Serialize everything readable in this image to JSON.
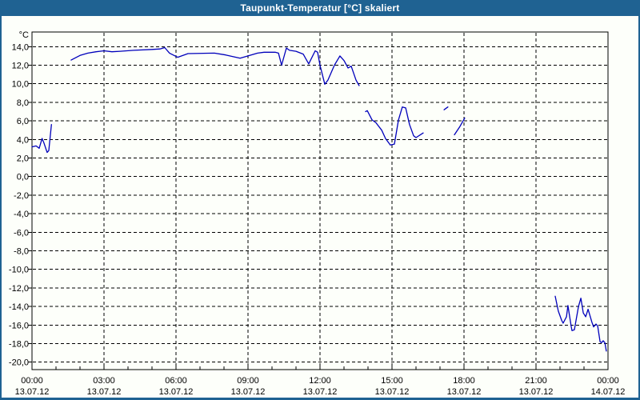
{
  "window": {
    "title": "Taupunkt-Temperatur [°C] skaliert"
  },
  "colors": {
    "titlebar_bg": "#1f6292",
    "window_border": "#1f6292",
    "window_bg": "#fdfffa",
    "grid": "#000000",
    "axis": "#000000",
    "tick_text": "#000000",
    "title_text": "#ffffff",
    "series_line": "#0000bb"
  },
  "chart_data": {
    "type": "line",
    "title": "Taupunkt-Temperatur [°C] skaliert",
    "unit_label": "°C",
    "grid": {
      "style": "dashed",
      "horizontal": true,
      "vertical": true
    },
    "legend": "none",
    "x_axis": {
      "range_hours": [
        0,
        24
      ],
      "minor_tick_every_hours": 1,
      "major_ticks": [
        {
          "hour": 0,
          "time": "00:00",
          "date": "13.07.12"
        },
        {
          "hour": 3,
          "time": "03:00",
          "date": "13.07.12"
        },
        {
          "hour": 6,
          "time": "06:00",
          "date": "13.07.12"
        },
        {
          "hour": 9,
          "time": "09:00",
          "date": "13.07.12"
        },
        {
          "hour": 12,
          "time": "12:00",
          "date": "13.07.12"
        },
        {
          "hour": 15,
          "time": "15:00",
          "date": "13.07.12"
        },
        {
          "hour": 18,
          "time": "18:00",
          "date": "13.07.12"
        },
        {
          "hour": 21,
          "time": "21:00",
          "date": "13.07.12"
        },
        {
          "hour": 24,
          "time": "00:00",
          "date": "14.07.12"
        }
      ]
    },
    "y_axis": {
      "range": [
        -20.8,
        15.6
      ],
      "ticks": [
        {
          "value": 14,
          "label": "14,0"
        },
        {
          "value": 12,
          "label": "12,0"
        },
        {
          "value": 10,
          "label": "10,0"
        },
        {
          "value": 8,
          "label": "8,0"
        },
        {
          "value": 6,
          "label": "6,0"
        },
        {
          "value": 4,
          "label": "4,0"
        },
        {
          "value": 2,
          "label": "2,0"
        },
        {
          "value": 0,
          "label": "0,0"
        },
        {
          "value": -2,
          "label": "-2,0"
        },
        {
          "value": -4,
          "label": "-4,0"
        },
        {
          "value": -6,
          "label": "-6,0"
        },
        {
          "value": -8,
          "label": "-8,0"
        },
        {
          "value": -10,
          "label": "-10,0"
        },
        {
          "value": -12,
          "label": "-12,0"
        },
        {
          "value": -14,
          "label": "-14,0"
        },
        {
          "value": -16,
          "label": "-16,0"
        },
        {
          "value": -18,
          "label": "-18,0"
        },
        {
          "value": -20,
          "label": "-20,0"
        }
      ]
    },
    "series": [
      {
        "name": "Taupunkt-Temperatur",
        "color": "#0000bb",
        "unit": "°C",
        "segments": [
          [
            [
              0.0,
              3.2
            ],
            [
              0.17,
              3.3
            ],
            [
              0.3,
              3.05
            ],
            [
              0.42,
              4.1
            ],
            [
              0.5,
              3.6
            ],
            [
              0.63,
              2.6
            ],
            [
              0.7,
              2.8
            ],
            [
              0.81,
              5.6
            ]
          ],
          [
            [
              1.63,
              12.55
            ],
            [
              2.0,
              13.05
            ],
            [
              2.33,
              13.3
            ],
            [
              2.67,
              13.45
            ],
            [
              3.0,
              13.55
            ],
            [
              3.33,
              13.45
            ],
            [
              3.67,
              13.5
            ],
            [
              4.23,
              13.6
            ],
            [
              5.0,
              13.7
            ],
            [
              5.33,
              13.75
            ],
            [
              5.53,
              13.9
            ],
            [
              5.73,
              13.3
            ],
            [
              6.07,
              12.85
            ],
            [
              6.5,
              13.25
            ],
            [
              7.6,
              13.3
            ],
            [
              8.07,
              13.1
            ],
            [
              8.67,
              12.75
            ],
            [
              9.0,
              13.0
            ],
            [
              9.4,
              13.3
            ],
            [
              9.67,
              13.4
            ],
            [
              10.13,
              13.4
            ],
            [
              10.27,
              13.3
            ],
            [
              10.4,
              12.0
            ],
            [
              10.6,
              13.85
            ],
            [
              10.73,
              13.6
            ],
            [
              11.0,
              13.5
            ],
            [
              11.3,
              13.2
            ],
            [
              11.53,
              12.15
            ],
            [
              11.8,
              13.55
            ],
            [
              11.9,
              13.4
            ],
            [
              12.0,
              12.0
            ],
            [
              12.2,
              9.95
            ],
            [
              12.33,
              10.4
            ],
            [
              12.6,
              12.0
            ],
            [
              12.83,
              13.0
            ],
            [
              13.0,
              12.5
            ],
            [
              13.17,
              11.7
            ],
            [
              13.3,
              11.9
            ],
            [
              13.5,
              10.4
            ],
            [
              13.63,
              9.8
            ]
          ],
          [
            [
              13.9,
              7.0
            ],
            [
              13.97,
              7.1
            ],
            [
              14.17,
              6.1
            ],
            [
              14.33,
              5.8
            ],
            [
              14.57,
              5.0
            ],
            [
              14.73,
              4.1
            ],
            [
              14.93,
              3.4
            ],
            [
              15.1,
              3.5
            ],
            [
              15.27,
              6.1
            ],
            [
              15.43,
              7.5
            ],
            [
              15.57,
              7.4
            ],
            [
              15.73,
              5.6
            ],
            [
              15.9,
              4.4
            ],
            [
              16.0,
              4.2
            ],
            [
              16.3,
              4.7
            ]
          ],
          [
            [
              17.17,
              7.2
            ],
            [
              17.33,
              7.5
            ]
          ],
          [
            [
              17.6,
              4.5
            ],
            [
              17.83,
              5.4
            ],
            [
              18.03,
              6.3
            ]
          ],
          [
            [
              21.8,
              -12.9
            ],
            [
              21.93,
              -14.5
            ],
            [
              22.07,
              -15.5
            ],
            [
              22.13,
              -15.8
            ],
            [
              22.27,
              -15.1
            ],
            [
              22.33,
              -13.9
            ],
            [
              22.47,
              -16.2
            ],
            [
              22.5,
              -16.6
            ],
            [
              22.6,
              -16.5
            ],
            [
              22.77,
              -14.0
            ],
            [
              22.87,
              -13.1
            ],
            [
              22.97,
              -14.7
            ],
            [
              23.07,
              -15.1
            ],
            [
              23.17,
              -14.3
            ],
            [
              23.33,
              -15.7
            ],
            [
              23.4,
              -16.2
            ],
            [
              23.5,
              -15.9
            ],
            [
              23.57,
              -16.1
            ],
            [
              23.67,
              -17.8
            ],
            [
              23.73,
              -17.9
            ],
            [
              23.8,
              -17.7
            ],
            [
              23.87,
              -17.9
            ],
            [
              23.93,
              -18.8
            ]
          ]
        ]
      }
    ]
  }
}
